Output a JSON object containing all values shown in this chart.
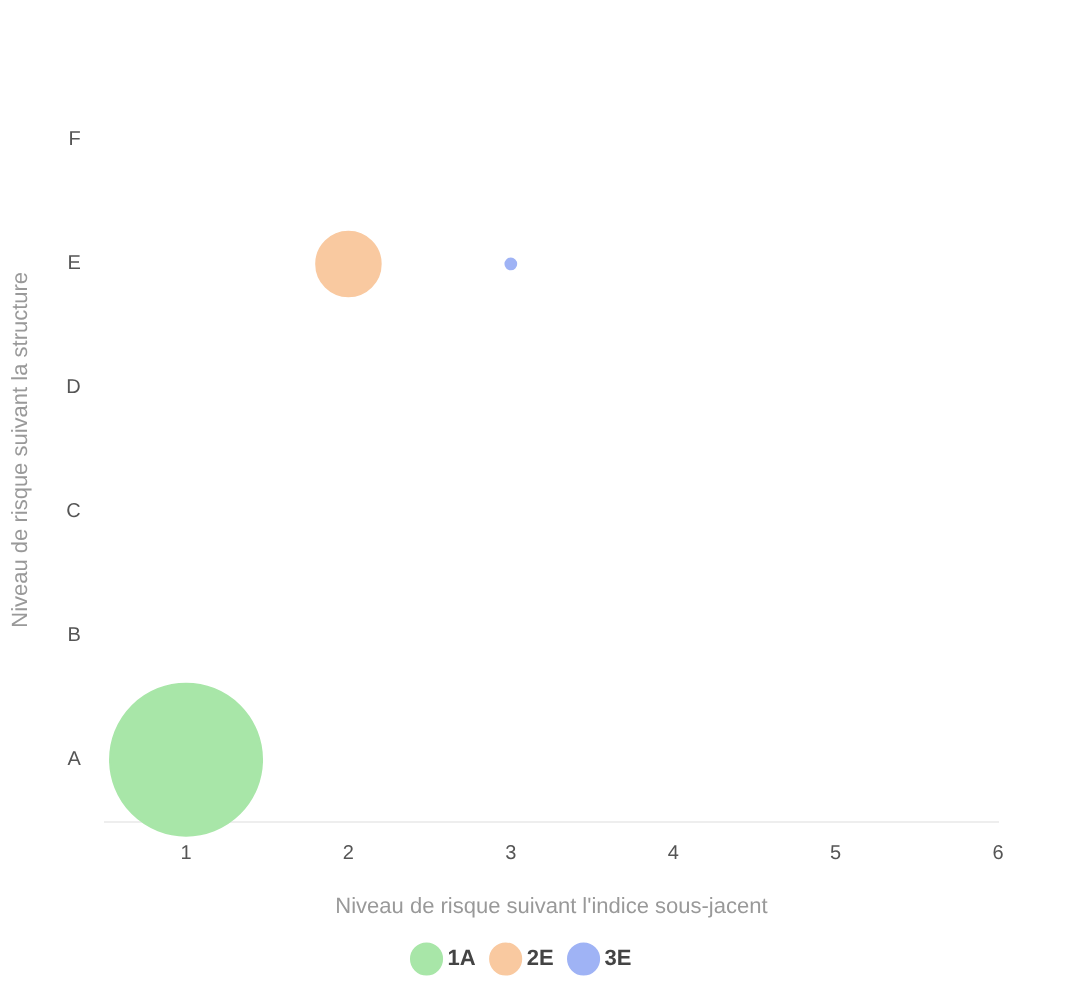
{
  "chart_data": {
    "type": "bubble",
    "orientation": "horizontal",
    "xlabel": "Niveau de risque suivant l'indice sous-jacent",
    "ylabel": "Niveau de risque suivant la structure",
    "categories": [
      "F",
      "E",
      "D",
      "C",
      "B",
      "A"
    ],
    "xlim": [
      0.5,
      6
    ],
    "xticks": [
      1,
      2,
      3,
      4,
      5,
      6
    ],
    "grid": false,
    "legend": "bottom",
    "series": [
      {
        "name": "1A",
        "color": "#a8e6a8",
        "values": [
          null,
          null,
          null,
          null,
          null,
          1
        ],
        "sizes": [
          null,
          null,
          null,
          null,
          null,
          1
        ]
      },
      {
        "name": "2E",
        "color": "#f9c9a0",
        "values": [
          null,
          2,
          null,
          null,
          null,
          null
        ],
        "sizes": [
          null,
          0.18,
          null,
          null,
          null,
          null
        ]
      },
      {
        "name": "3E",
        "color": "#9fb3f5",
        "values": [
          null,
          3,
          null,
          null,
          null,
          null
        ],
        "sizes": [
          null,
          0.005,
          null,
          null,
          null,
          null
        ]
      }
    ]
  }
}
